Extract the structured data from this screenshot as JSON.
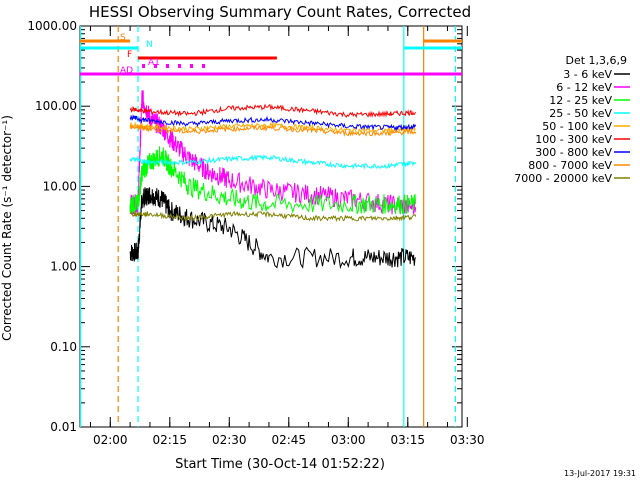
{
  "chart_data": {
    "type": "line",
    "title": "HESSI Observing Summary Count Rates, Corrected",
    "xlabel": "Start Time (30-Oct-14 01:52:22)",
    "ylabel": "Corrected Count Rate (s⁻¹ detector⁻¹)",
    "footer": "13-Jul-2017 19:31",
    "y_scale": "log",
    "ylim": [
      0.01,
      1000
    ],
    "xlim": [
      "01:52:22",
      "03:28:40"
    ],
    "x_ticks": [
      "02:00",
      "02:15",
      "02:30",
      "02:45",
      "03:00",
      "03:15",
      "03:30"
    ],
    "y_ticks": [
      "1000.00",
      "100.00",
      "10.00",
      "1.00",
      "0.10",
      "0.01"
    ],
    "legend_title": "Det 1,3,6,9",
    "legend_position": "right",
    "series": [
      {
        "name": "3 - 6 keV",
        "color": "#000000",
        "x": [
          "02:05",
          "02:07",
          "02:08",
          "02:10",
          "02:13",
          "02:15",
          "02:20",
          "02:30",
          "02:40",
          "03:00",
          "03:10",
          "03:17"
        ],
        "values": [
          1.5,
          1.5,
          7,
          8,
          7,
          5,
          4,
          3,
          1.3,
          1.3,
          1.3,
          1.3
        ]
      },
      {
        "name": "6 - 12 keV",
        "color": "#ff00ff",
        "x": [
          "02:05",
          "02:07",
          "02:08",
          "02:10",
          "02:13",
          "02:16",
          "02:20",
          "02:25",
          "02:30",
          "02:40",
          "02:50",
          "03:00",
          "03:10",
          "03:17"
        ],
        "values": [
          6,
          6,
          130,
          70,
          55,
          35,
          22,
          15,
          12,
          9,
          8,
          7,
          6,
          5.5
        ]
      },
      {
        "name": "12 - 25 keV",
        "color": "#00ff00",
        "x": [
          "02:05",
          "02:07",
          "02:08",
          "02:10",
          "02:13",
          "02:15",
          "02:20",
          "02:30",
          "02:40",
          "03:00",
          "03:10",
          "03:17"
        ],
        "values": [
          6,
          6,
          15,
          20,
          25,
          18,
          10,
          7,
          6,
          6,
          6,
          6
        ]
      },
      {
        "name": "25 - 50 keV",
        "color": "#00ffff",
        "x": [
          "02:05",
          "02:10",
          "02:20",
          "02:30",
          "02:40",
          "02:50",
          "03:00",
          "03:10",
          "03:17"
        ],
        "values": [
          22,
          20,
          20,
          22,
          23,
          20,
          18,
          18,
          20
        ]
      },
      {
        "name": "50 - 100 keV",
        "color": "#ffaa00",
        "x": [
          "02:05",
          "02:10",
          "02:20",
          "02:30",
          "02:40",
          "02:50",
          "03:00",
          "03:10",
          "03:17"
        ],
        "values": [
          58,
          56,
          52,
          56,
          58,
          54,
          50,
          50,
          52
        ]
      },
      {
        "name": "100 - 300 keV",
        "color": "#ff0000",
        "x": [
          "02:05",
          "02:10",
          "02:20",
          "02:30",
          "02:40",
          "02:50",
          "03:00",
          "03:10",
          "03:17"
        ],
        "values": [
          92,
          86,
          80,
          94,
          98,
          88,
          78,
          80,
          84
        ]
      },
      {
        "name": "300 - 800 keV",
        "color": "#0000ff",
        "x": [
          "02:05",
          "02:10",
          "02:20",
          "02:30",
          "02:40",
          "02:50",
          "03:00",
          "03:10",
          "03:17"
        ],
        "values": [
          72,
          66,
          60,
          66,
          68,
          62,
          56,
          54,
          56
        ]
      },
      {
        "name": "800 - 7000 keV",
        "color": "#ff8c00",
        "x": [
          "02:05",
          "02:10",
          "02:20",
          "02:30",
          "02:40",
          "02:50",
          "03:00",
          "03:10",
          "03:17"
        ],
        "values": [
          55,
          52,
          48,
          52,
          54,
          50,
          46,
          46,
          48
        ]
      },
      {
        "name": "7000 - 20000 keV",
        "color": "#808000",
        "x": [
          "02:05",
          "02:10",
          "02:20",
          "02:30",
          "02:40",
          "02:50",
          "03:00",
          "03:10",
          "03:17"
        ],
        "values": [
          4.5,
          4.5,
          4,
          4.5,
          4.5,
          4,
          4,
          4,
          4.2
        ]
      }
    ],
    "flag_lines": [
      {
        "label": "S",
        "color": "#ff8000",
        "segments": [
          [
            "01:52:22",
            "02:05"
          ],
          [
            "03:19",
            "03:28:40"
          ]
        ]
      },
      {
        "label": "N",
        "color": "#00ffff",
        "segments": [
          [
            "01:52:22",
            "02:07"
          ],
          [
            "03:14",
            "03:28:40"
          ]
        ]
      },
      {
        "label": "F",
        "color": "#ff0000",
        "segments": [
          [
            "02:07",
            "02:42"
          ]
        ]
      },
      {
        "label": "AD",
        "color": "#ff00ff",
        "segments": [
          [
            "01:52:22",
            "03:28:40"
          ]
        ]
      },
      {
        "label": "A1",
        "color": "#ff00ff",
        "segments": [
          [
            "02:08",
            "02:25"
          ]
        ]
      }
    ],
    "vertical_markers": [
      {
        "time": "01:52:30",
        "color": "#00ffff",
        "style": "solid"
      },
      {
        "time": "02:02",
        "color": "#ff8000",
        "style": "dashed"
      },
      {
        "time": "02:07",
        "color": "#00ffff",
        "style": "dashed"
      },
      {
        "time": "03:14",
        "color": "#00ffff",
        "style": "solid"
      },
      {
        "time": "03:19",
        "color": "#ff8000",
        "style": "solid"
      },
      {
        "time": "03:27",
        "color": "#00ffff",
        "style": "dashed"
      }
    ]
  }
}
